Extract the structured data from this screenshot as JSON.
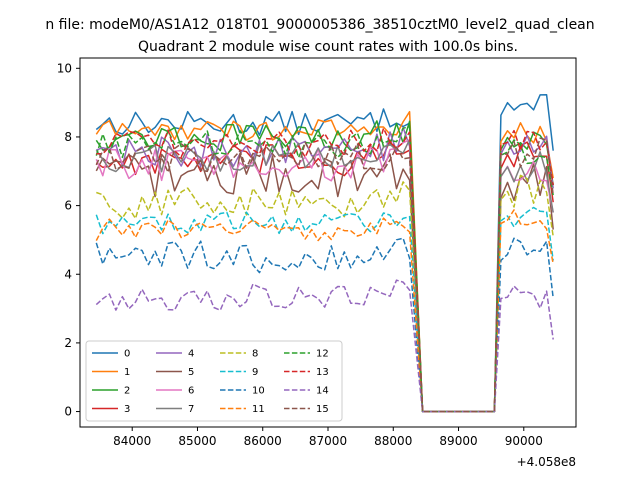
{
  "suptitle": "n file: modeM0/AS1A12_018T01_9000005386_38510cztM0_level2_quad_clean",
  "chart_data": {
    "type": "line",
    "title": "Quadrant 2 module wise count rates with 100.0s bins.",
    "xlabel": "",
    "ylabel": "",
    "x_offset_label": "+4.058e8",
    "xlim": [
      83200,
      90800
    ],
    "ylim": [
      -0.45,
      10.3
    ],
    "xticks": [
      84000,
      85000,
      86000,
      87000,
      88000,
      89000,
      90000
    ],
    "yticks": [
      0,
      2,
      4,
      6,
      8,
      10
    ],
    "grid": false,
    "legend": {
      "placement": "lower-left",
      "columns": 4
    },
    "gap": {
      "start": 88300,
      "low_start": 88450,
      "low_end": 89550,
      "end": 89650
    },
    "x_start": 83450,
    "x_end": 90450,
    "series": [
      {
        "name": "0",
        "color": "#1f77b4",
        "dash": "solid",
        "base": 8.4,
        "amp": 0.22,
        "late": 8.9
      },
      {
        "name": "1",
        "color": "#ff7f0e",
        "dash": "solid",
        "base": 8.2,
        "amp": 0.2,
        "late": 8.1
      },
      {
        "name": "2",
        "color": "#2ca02c",
        "dash": "solid",
        "base": 8.0,
        "amp": 0.25,
        "late": 7.9
      },
      {
        "name": "3",
        "color": "#d62728",
        "dash": "solid",
        "base": 7.3,
        "amp": 0.3,
        "late": 7.4
      },
      {
        "name": "4",
        "color": "#9467bd",
        "dash": "solid",
        "base": 7.6,
        "amp": 0.3,
        "late": 7.8
      },
      {
        "name": "5",
        "color": "#8c564b",
        "dash": "solid",
        "base": 6.9,
        "amp": 0.4,
        "late": 6.6
      },
      {
        "name": "6",
        "color": "#e377c2",
        "dash": "solid",
        "base": 7.2,
        "amp": 0.3,
        "late": 7.1
      },
      {
        "name": "7",
        "color": "#7f7f7f",
        "dash": "solid",
        "base": 7.4,
        "amp": 0.3,
        "late": 7.1
      },
      {
        "name": "8",
        "color": "#bcbd22",
        "dash": "dashed",
        "base": 6.1,
        "amp": 0.3,
        "late": 6.4
      },
      {
        "name": "9",
        "color": "#17becf",
        "dash": "dashed",
        "base": 5.5,
        "amp": 0.2,
        "late": 5.7
      },
      {
        "name": "10",
        "color": "#1f77b4",
        "dash": "dashed",
        "base": 4.5,
        "amp": 0.3,
        "late": 4.6
      },
      {
        "name": "11",
        "color": "#ff7f0e",
        "dash": "dashed",
        "base": 5.3,
        "amp": 0.2,
        "late": 5.6
      },
      {
        "name": "12",
        "color": "#2ca02c",
        "dash": "dashed",
        "base": 7.8,
        "amp": 0.25,
        "late": 7.6
      },
      {
        "name": "13",
        "color": "#d62728",
        "dash": "dashed",
        "base": 7.8,
        "amp": 0.25,
        "late": 7.9
      },
      {
        "name": "14",
        "color": "#9467bd",
        "dash": "dashed",
        "base": 3.35,
        "amp": 0.25,
        "late": 3.4
      },
      {
        "name": "15",
        "color": "#8c564b",
        "dash": "dashed",
        "base": 7.4,
        "amp": 0.3,
        "late": 7.6
      }
    ]
  }
}
